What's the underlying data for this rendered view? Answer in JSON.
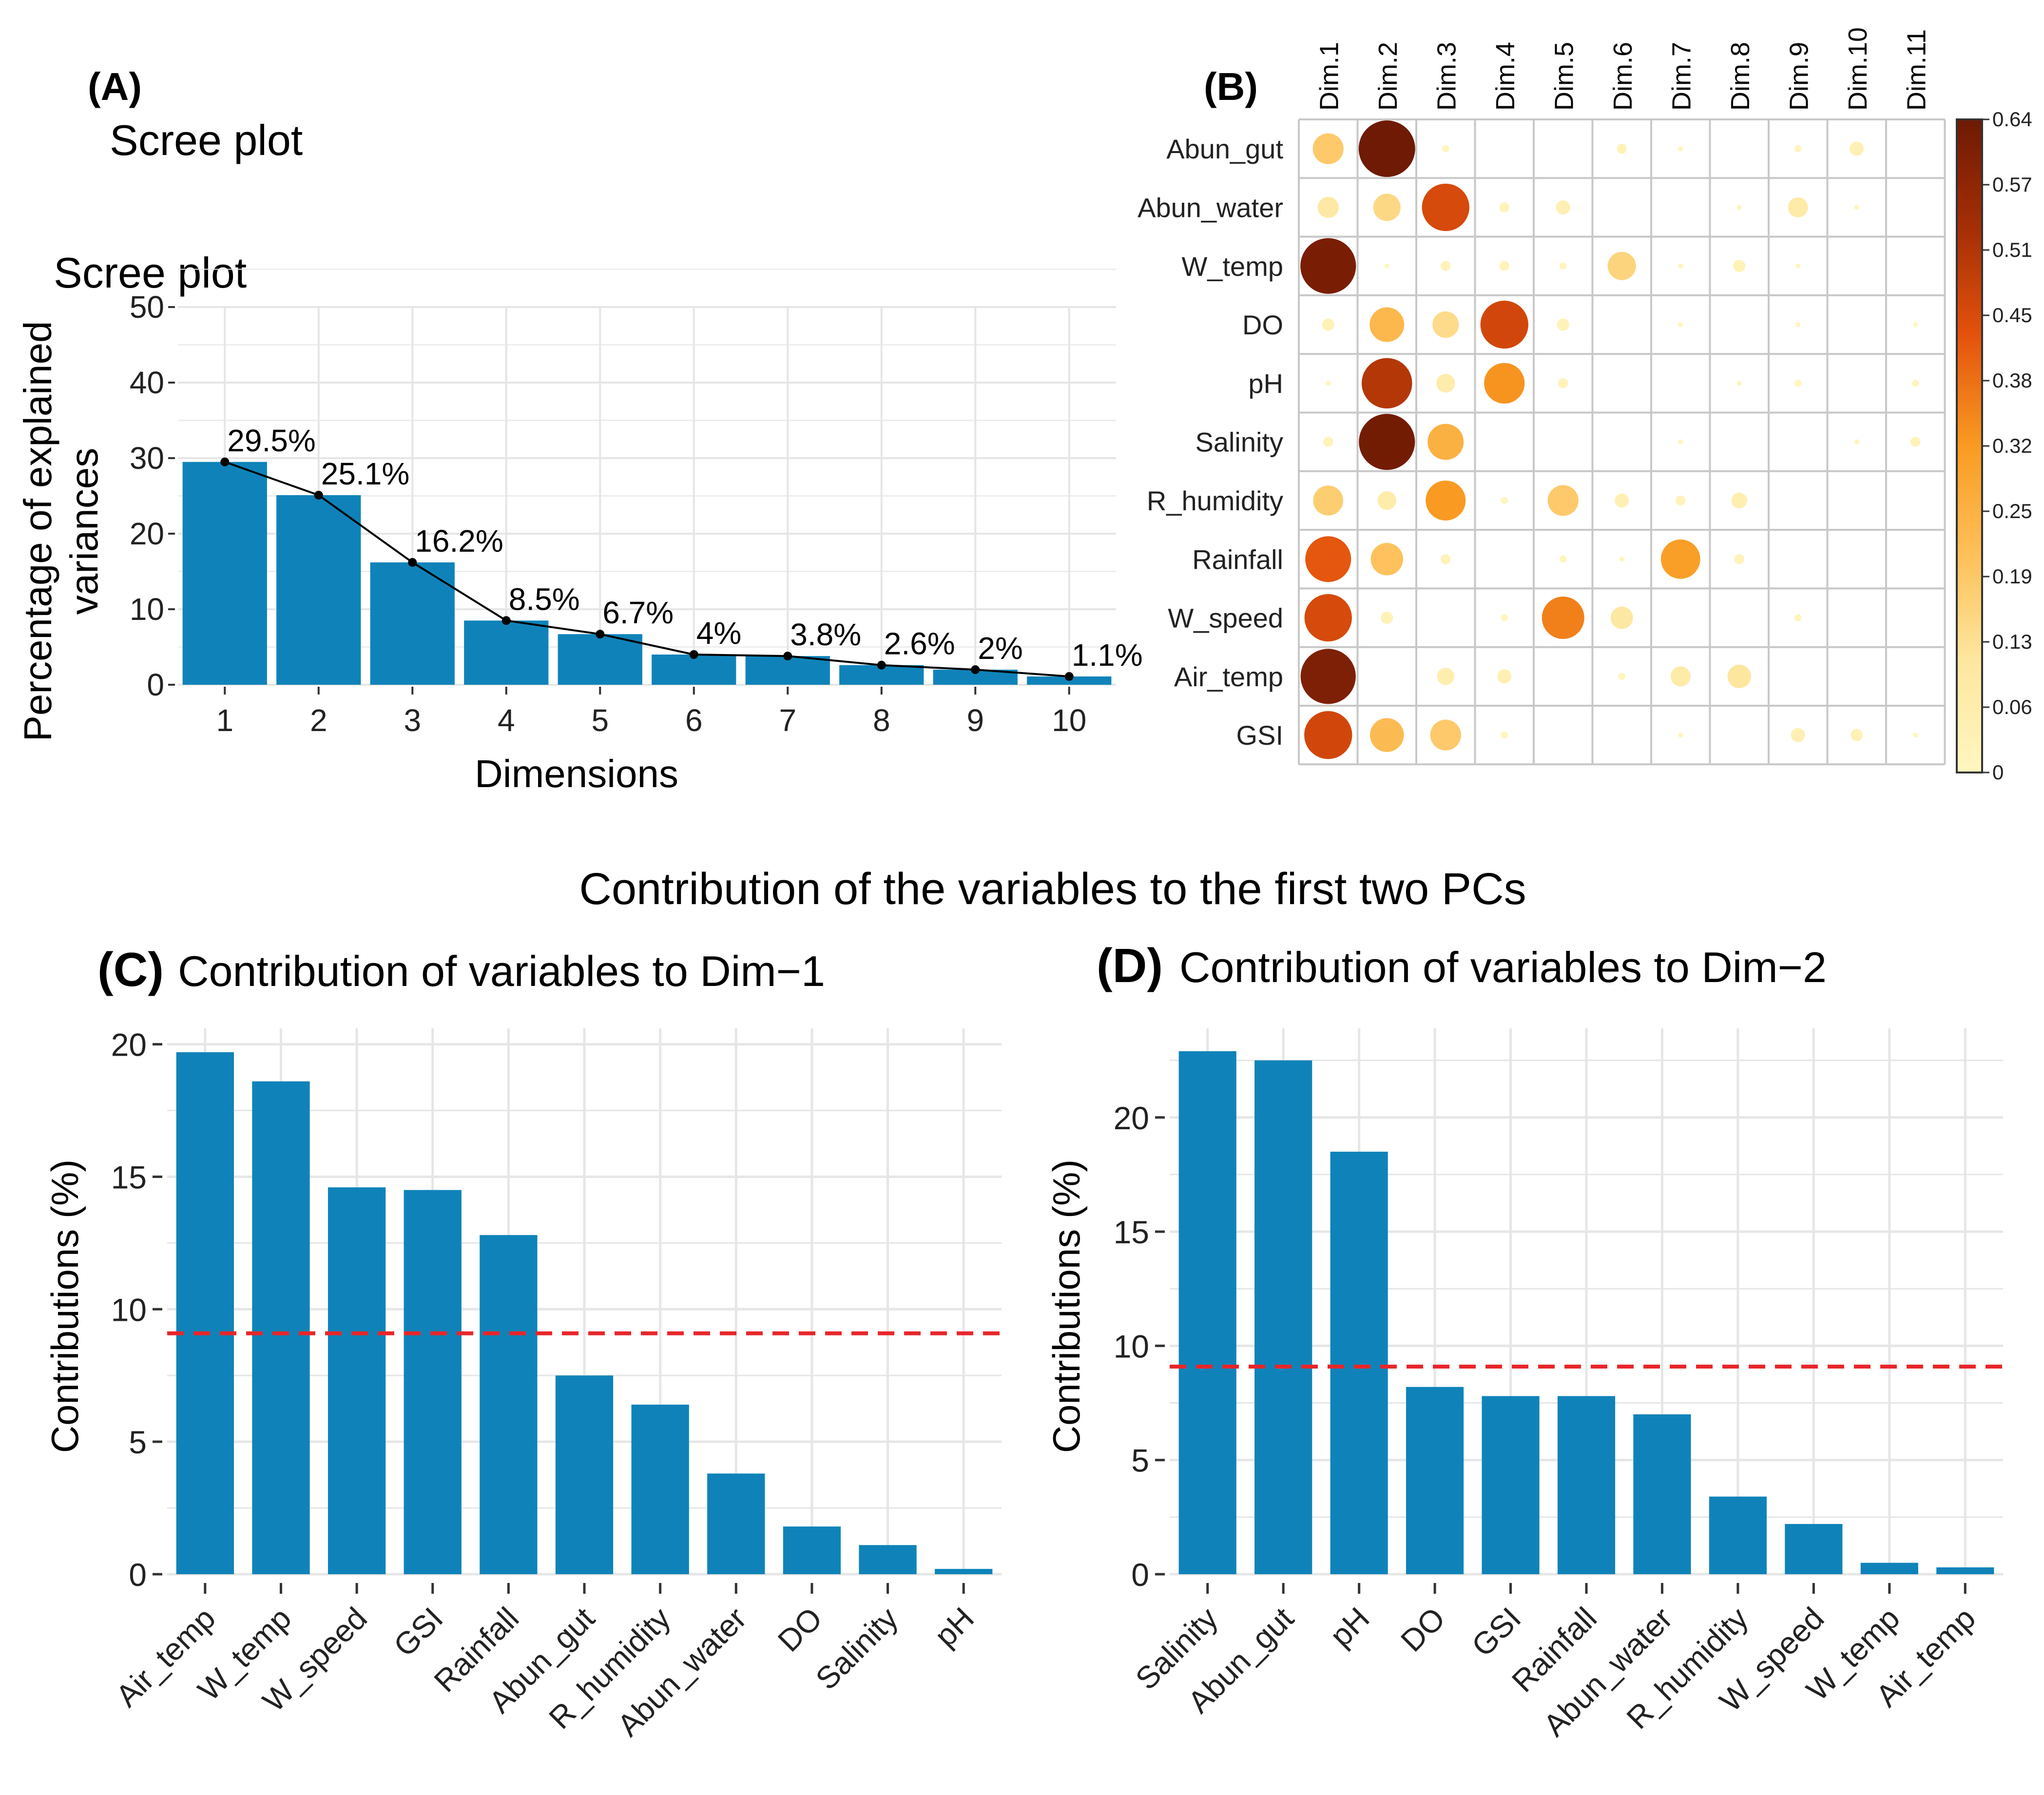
{
  "chart_data": [
    {
      "panel": "(A)",
      "type": "bar",
      "header": "Scree plot",
      "title": "Scree plot",
      "xlabel": "Dimensions",
      "ylabel_lines": [
        "Percentage of explained",
        "variances"
      ],
      "categories": [
        "1",
        "2",
        "3",
        "4",
        "5",
        "6",
        "7",
        "8",
        "9",
        "10"
      ],
      "values": [
        29.5,
        25.1,
        16.2,
        8.5,
        6.7,
        4.0,
        3.8,
        2.6,
        2.0,
        1.1
      ],
      "data_labels": [
        "29.5%",
        "25.1%",
        "16.2%",
        "8.5%",
        "6.7%",
        "4%",
        "3.8%",
        "2.6%",
        "2%",
        "1.1%"
      ],
      "line_overlay": true,
      "ylim": [
        0,
        50
      ],
      "yticks": [
        "0",
        "10",
        "20",
        "30",
        "40",
        "50"
      ],
      "grid": true
    },
    {
      "panel": "(B)",
      "type": "heatmap",
      "columns": [
        "Dim.1",
        "Dim.2",
        "Dim.3",
        "Dim.4",
        "Dim.5",
        "Dim.6",
        "Dim.7",
        "Dim.8",
        "Dim.9",
        "Dim.10",
        "Dim.11"
      ],
      "rows": [
        "Abun_gut",
        "Abun_water",
        "W_temp",
        "DO",
        "pH",
        "Salinity",
        "R_humidity",
        "Rainfall",
        "W_speed",
        "Air_temp",
        "GSI"
      ],
      "values": [
        [
          0.19,
          0.64,
          0.01,
          0,
          0,
          0.02,
          0.005,
          0,
          0.01,
          0.04,
          0
        ],
        [
          0.09,
          0.15,
          0.45,
          0.02,
          0.04,
          0,
          0,
          0.005,
          0.08,
          0.005,
          0
        ],
        [
          0.62,
          0.005,
          0.02,
          0.02,
          0.01,
          0.16,
          0.005,
          0.03,
          0.005,
          0,
          0
        ],
        [
          0.03,
          0.24,
          0.14,
          0.46,
          0.03,
          0,
          0.005,
          0,
          0.005,
          0,
          0.005
        ],
        [
          0.005,
          0.51,
          0.07,
          0.33,
          0.02,
          0,
          0,
          0.005,
          0.01,
          0,
          0.01
        ],
        [
          0.02,
          0.63,
          0.26,
          0,
          0,
          0,
          0.005,
          0,
          0,
          0.005,
          0.02
        ],
        [
          0.18,
          0.07,
          0.32,
          0.01,
          0.19,
          0.04,
          0.02,
          0.05,
          0,
          0,
          0
        ],
        [
          0.42,
          0.21,
          0.02,
          0,
          0.01,
          0.005,
          0.31,
          0.02,
          0,
          0,
          0
        ],
        [
          0.45,
          0.03,
          0,
          0.01,
          0.36,
          0.1,
          0,
          0,
          0.01,
          0,
          0
        ],
        [
          0.61,
          0,
          0.06,
          0.04,
          0,
          0.01,
          0.08,
          0.11,
          0,
          0,
          0
        ],
        [
          0.46,
          0.23,
          0.19,
          0.01,
          0,
          0,
          0.005,
          0,
          0.04,
          0.03,
          0.005
        ]
      ],
      "scale_min": 0,
      "scale_max": 0.64,
      "legend_ticks": [
        "0",
        "0.06",
        "0.13",
        "0.19",
        "0.25",
        "0.32",
        "0.38",
        "0.45",
        "0.51",
        "0.57",
        "0.64"
      ],
      "colors": [
        "#fff6c0",
        "#fde7a0",
        "#fdc15b",
        "#f99b22",
        "#e4520d",
        "#a62f06",
        "#6e1a04"
      ]
    },
    {
      "panel": "(C)",
      "type": "bar",
      "suptitle": "Contribution of the variables to the first two PCs",
      "title": "Contribution of variables to Dim−1",
      "ylabel": "Contributions (%)",
      "categories": [
        "Air_temp",
        "W_temp",
        "W_speed",
        "GSI",
        "Rainfall",
        "Abun_gut",
        "R_humidity",
        "Abun_water",
        "DO",
        "Salinity",
        "pH"
      ],
      "values": [
        19.7,
        18.6,
        14.6,
        14.5,
        12.8,
        7.5,
        6.4,
        3.8,
        1.8,
        1.1,
        0.2
      ],
      "reference_line": 9.09,
      "ylim": [
        0,
        20.6
      ],
      "yticks": [
        "0",
        "5",
        "10",
        "15",
        "20"
      ],
      "grid": true
    },
    {
      "panel": "(D)",
      "type": "bar",
      "title": "Contribution of variables to Dim−2",
      "ylabel": "Contributions (%)",
      "categories": [
        "Salinity",
        "Abun_gut",
        "pH",
        "DO",
        "GSI",
        "Rainfall",
        "Abun_water",
        "R_humidity",
        "W_speed",
        "W_temp",
        "Air_temp"
      ],
      "values": [
        22.9,
        22.5,
        18.5,
        8.2,
        7.8,
        7.8,
        7.0,
        3.4,
        2.2,
        0.5,
        0.3
      ],
      "reference_line": 9.09,
      "ylim": [
        0,
        23.9
      ],
      "yticks": [
        "0",
        "5",
        "10",
        "15",
        "20"
      ],
      "grid": true
    }
  ]
}
